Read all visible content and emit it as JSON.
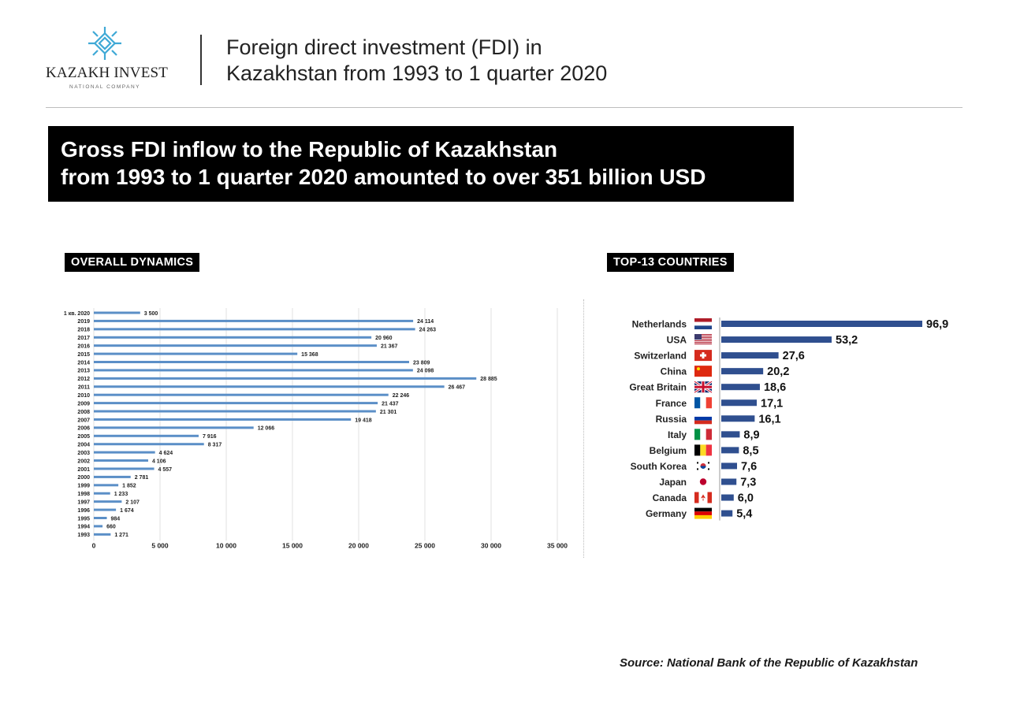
{
  "header": {
    "logo_name": "KAZAKH INVEST",
    "logo_subtitle": "NATIONAL COMPANY",
    "title_line1": "Foreign direct investment (FDI) in",
    "title_line2": "Kazakhstan from 1993 to 1 quarter 2020"
  },
  "banner": {
    "line1": "Gross FDI inflow to the Republic of Kazakhstan",
    "line2": "from 1993 to 1 quarter 2020 amounted to over 351 billion USD"
  },
  "colors": {
    "bar_left": "#5b8fc7",
    "bar_right": "#2f4f8f",
    "logo": "#3fa9d6"
  },
  "source": "Source: National Bank of the Republic of Kazakhstan",
  "chart_data": [
    {
      "type": "bar",
      "orientation": "horizontal",
      "title": "OVERALL DYNAMICS",
      "categories": [
        "1 кв. 2020",
        "2019",
        "2018",
        "2017",
        "2016",
        "2015",
        "2014",
        "2013",
        "2012",
        "2011",
        "2010",
        "2009",
        "2008",
        "2007",
        "2006",
        "2005",
        "2004",
        "2003",
        "2002",
        "2001",
        "2000",
        "1999",
        "1998",
        "1997",
        "1996",
        "1995",
        "1994",
        "1993"
      ],
      "values": [
        3500,
        24114,
        24263,
        20960,
        21367,
        15368,
        23809,
        24098,
        28885,
        26467,
        22246,
        21437,
        21301,
        19418,
        12066,
        7916,
        8317,
        4624,
        4106,
        4557,
        2781,
        1852,
        1233,
        2107,
        1674,
        984,
        660,
        1271
      ],
      "value_labels": [
        "3 500",
        "24 114",
        "24 263",
        "20 960",
        "21 367",
        "15 368",
        "23 809",
        "24 098",
        "28 885",
        "26 467",
        "22 246",
        "21 437",
        "21 301",
        "19 418",
        "12 066",
        "7 916",
        "8 317",
        "4 624",
        "4 106",
        "4 557",
        "2 781",
        "1 852",
        "1 233",
        "2 107",
        "1 674",
        "984",
        "660",
        "1 271"
      ],
      "xlim": [
        0,
        35000
      ],
      "xticks": [
        0,
        5000,
        10000,
        15000,
        20000,
        25000,
        30000,
        35000
      ],
      "xtick_labels": [
        "0",
        "5 000",
        "10 000",
        "15 000",
        "20 000",
        "25 000",
        "30 000",
        "35 000"
      ],
      "grid": true
    },
    {
      "type": "bar",
      "orientation": "horizontal",
      "title": "TOP-13 COUNTRIES",
      "categories": [
        "Netherlands",
        "USA",
        "Switzerland",
        "China",
        "Great Britain",
        "France",
        "Russia",
        "Italy",
        "Belgium",
        "South Korea",
        "Japan",
        "Canada",
        "Germany"
      ],
      "values": [
        96.9,
        53.2,
        27.6,
        20.2,
        18.6,
        17.1,
        16.1,
        8.9,
        8.5,
        7.6,
        7.3,
        6.0,
        5.4
      ],
      "value_labels": [
        "96,9",
        "53,2",
        "27,6",
        "20,2",
        "18,6",
        "17,1",
        "16,1",
        "8,9",
        "8,5",
        "7,6",
        "7,3",
        "6,0",
        "5,4"
      ],
      "flags": [
        "netherlands-flag",
        "usa-flag",
        "switzerland-flag",
        "china-flag",
        "great-britain-flag",
        "france-flag",
        "russia-flag",
        "italy-flag",
        "belgium-flag",
        "south-korea-flag",
        "japan-flag",
        "canada-flag",
        "germany-flag"
      ],
      "grid": false
    }
  ]
}
